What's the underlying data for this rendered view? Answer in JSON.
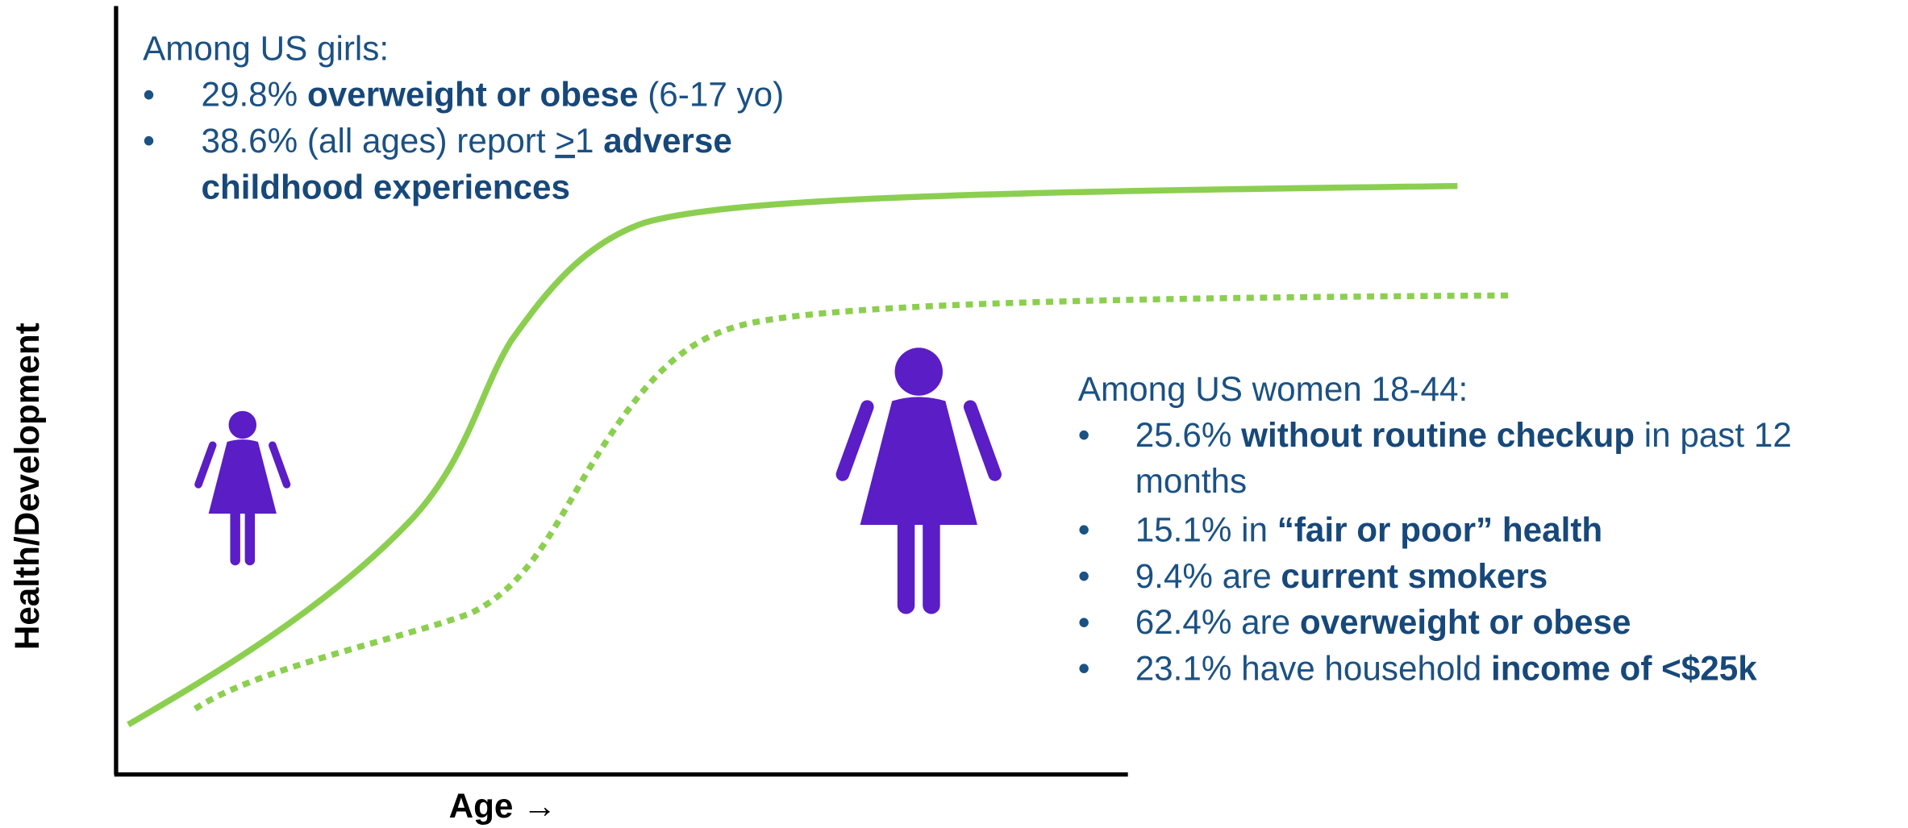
{
  "y_axis_label": "Health/Development",
  "x_axis_label": "Age →",
  "bullet": "•",
  "girls": {
    "heading": "Among US girls:",
    "bullets": [
      [
        {
          "text": "29.8% "
        },
        {
          "text": "overweight or obese",
          "bold": true
        },
        {
          "text": " (6-17 yo)"
        }
      ],
      [
        {
          "text": "38.6% (all ages) report "
        },
        {
          "text": ">",
          "underline": true
        },
        {
          "text": "1 "
        },
        {
          "text": "adverse",
          "bold": true
        },
        {
          "text": "childhood experiences",
          "bold": true
        }
      ]
    ]
  },
  "women": {
    "heading": "Among US women 18-44:",
    "bullets": [
      [
        {
          "text": "25.6% "
        },
        {
          "text": "without routine checkup",
          "bold": true
        },
        {
          "text": " in past 12"
        },
        {
          "text": "months"
        }
      ],
      [
        {
          "text": "15.1% in "
        },
        {
          "text": "“fair or poor” health",
          "bold": true
        }
      ],
      [
        {
          "text": "9.4% are "
        },
        {
          "text": "current smokers",
          "bold": true
        }
      ],
      [
        {
          "text": "62.4% are "
        },
        {
          "text": "overweight or obese",
          "bold": true
        }
      ],
      [
        {
          "text": "23.1% have household "
        },
        {
          "text": "income of <$25k",
          "bold": true
        }
      ]
    ]
  }
}
